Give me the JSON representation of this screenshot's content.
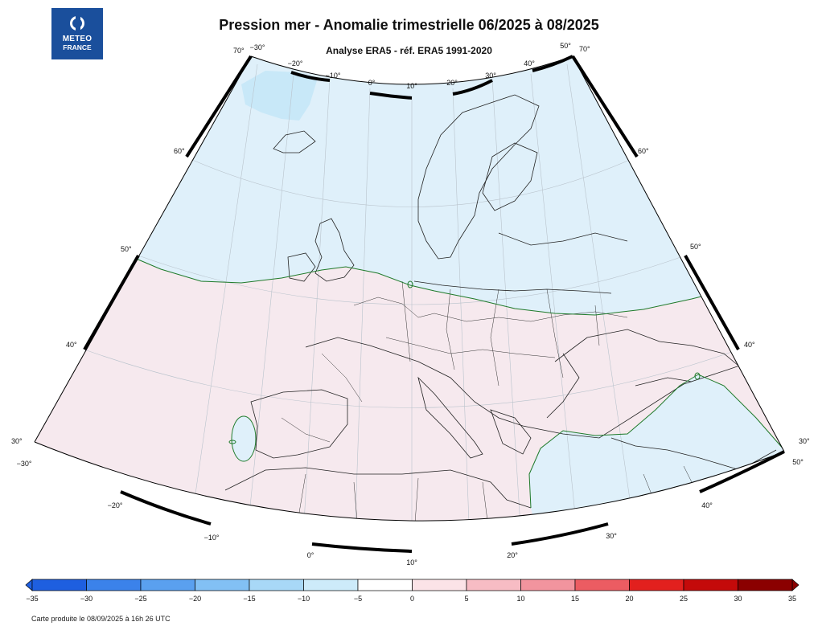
{
  "header": {
    "logo_line1": "METEO",
    "logo_line2": "FRANCE",
    "title": "Pression mer - Anomalie trimestrielle 06/2025 à 08/2025",
    "subtitle": "Analyse ERA5 - réf. ERA5 1991-2020"
  },
  "map": {
    "left_lat_labels": [
      "70°",
      "60°",
      "50°",
      "40°",
      "30°"
    ],
    "right_lat_labels": [
      "70°",
      "60°",
      "50°",
      "40°",
      "30°"
    ],
    "top_lon_labels": [
      "−30°",
      "−20°",
      "−10°",
      "0°",
      "10°",
      "20°",
      "30°",
      "40°",
      "50°"
    ],
    "bottom_lon_labels": [
      "−30°",
      "−20°",
      "−10°",
      "0°",
      "10°",
      "20°",
      "30°",
      "40°",
      "50°"
    ],
    "colors": {
      "negative_fill": "#dff0fa",
      "strong_negative_fill": "#c8e8f8",
      "positive_fill": "#f6e9ee",
      "zero_contour": "#1f7a2a",
      "coast": "#222222",
      "grid": "#b9c3cc"
    }
  },
  "colorbar": {
    "ticks": [
      "−35",
      "−30",
      "−25",
      "−20",
      "−15",
      "−10",
      "−5",
      "0",
      "5",
      "10",
      "15",
      "20",
      "25",
      "30",
      "35"
    ],
    "colors": [
      "#1e5fe0",
      "#3b82ea",
      "#5aa0ef",
      "#82c0f4",
      "#a8d8f7",
      "#cdebfa",
      "#ffffff",
      "#fbe3e7",
      "#f7bcc4",
      "#f2949e",
      "#ec5c62",
      "#e2201e",
      "#c40a0a",
      "#8b0000"
    ]
  },
  "footer": {
    "text": "Carte produite le 08/09/2025 à 16h 26 UTC"
  }
}
